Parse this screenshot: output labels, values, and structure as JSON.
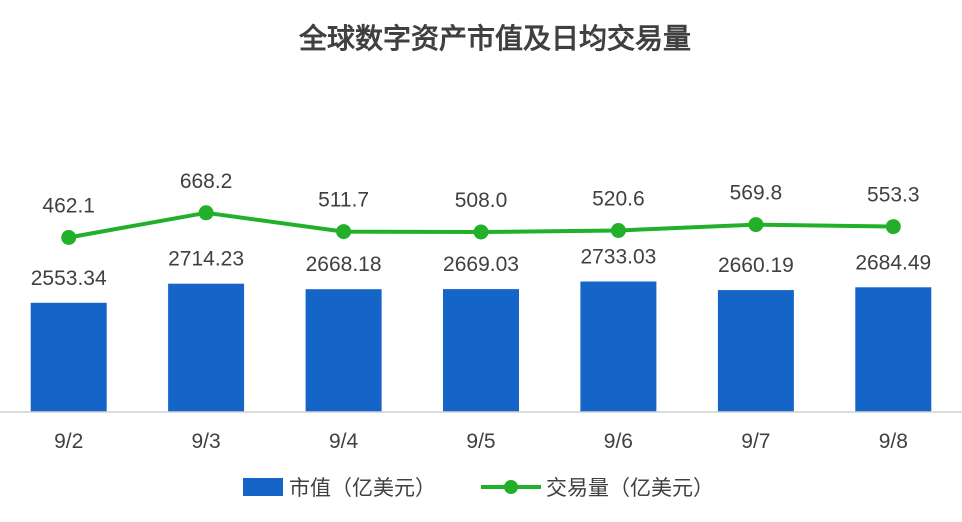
{
  "chart_data": {
    "type": "bar+line",
    "title": "全球数字资产市值及日均交易量",
    "categories": [
      "9/2",
      "9/3",
      "9/4",
      "9/5",
      "9/6",
      "9/7",
      "9/8"
    ],
    "series": [
      {
        "name": "市值（亿美元）",
        "type": "bar",
        "color": "#1565c8",
        "values": [
          2553.34,
          2714.23,
          2668.18,
          2669.03,
          2733.03,
          2660.19,
          2684.49
        ],
        "labels": [
          "2553.34",
          "2714.23",
          "2668.18",
          "2669.03",
          "2733.03",
          "2660.19",
          "2684.49"
        ]
      },
      {
        "name": "交易量（亿美元）",
        "type": "line",
        "color": "#22b02a",
        "values": [
          462.1,
          668.2,
          511.7,
          508.0,
          520.6,
          569.8,
          553.3
        ],
        "labels": [
          "462.1",
          "668.2",
          "511.7",
          "508.0",
          "520.6",
          "569.8",
          "553.3"
        ]
      }
    ],
    "grid": false,
    "legend_position": "bottom"
  }
}
